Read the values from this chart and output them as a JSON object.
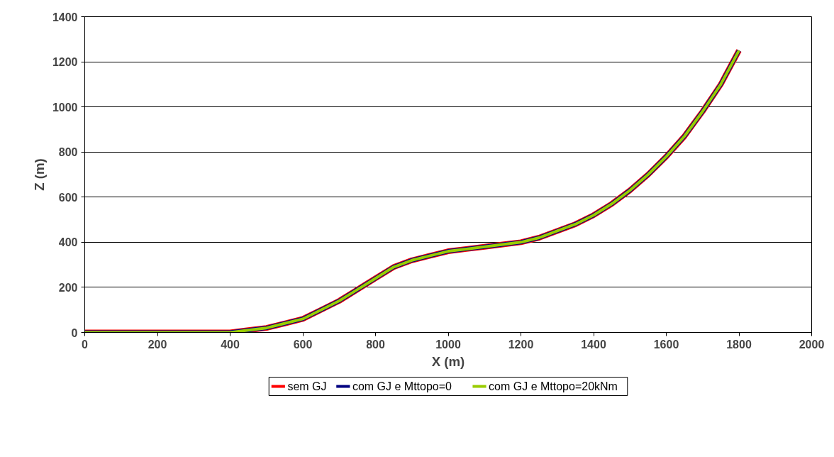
{
  "chart_data": {
    "type": "line",
    "xlabel": "X (m)",
    "ylabel": "Z (m)",
    "x": [
      0,
      400,
      450,
      500,
      550,
      600,
      650,
      700,
      750,
      800,
      850,
      900,
      950,
      1000,
      1050,
      1100,
      1150,
      1200,
      1250,
      1300,
      1350,
      1400,
      1450,
      1500,
      1550,
      1600,
      1650,
      1700,
      1750,
      1800
    ],
    "series": [
      {
        "name": "sem GJ",
        "color": "#ff0000",
        "values": [
          0,
          0,
          10,
          20,
          40,
          60,
          100,
          140,
          190,
          240,
          290,
          320,
          340,
          360,
          370,
          380,
          390,
          400,
          420,
          450,
          480,
          520,
          570,
          630,
          700,
          780,
          870,
          980,
          1100,
          1250
        ]
      },
      {
        "name": "com GJ e Mttopo=0",
        "color": "#000080",
        "values": [
          0,
          0,
          10,
          20,
          40,
          60,
          100,
          140,
          190,
          240,
          290,
          320,
          340,
          360,
          370,
          380,
          390,
          400,
          420,
          450,
          480,
          520,
          570,
          630,
          700,
          780,
          870,
          980,
          1100,
          1250
        ]
      },
      {
        "name": "com GJ e Mttopo=20kNm",
        "color": "#99cc00",
        "values": [
          0,
          0,
          10,
          20,
          40,
          60,
          100,
          140,
          190,
          240,
          290,
          320,
          340,
          360,
          370,
          380,
          390,
          400,
          420,
          450,
          480,
          520,
          570,
          630,
          700,
          780,
          870,
          980,
          1100,
          1250
        ]
      }
    ],
    "xlim": [
      0,
      2000
    ],
    "ylim": [
      0,
      1400
    ],
    "xticks": [
      0,
      200,
      400,
      600,
      800,
      1000,
      1200,
      1400,
      1600,
      1800,
      2000
    ],
    "yticks": [
      0,
      200,
      400,
      600,
      800,
      1000,
      1200,
      1400
    ],
    "grid": "y",
    "legend": "bottom",
    "marker": "none",
    "line_style": "solid"
  }
}
